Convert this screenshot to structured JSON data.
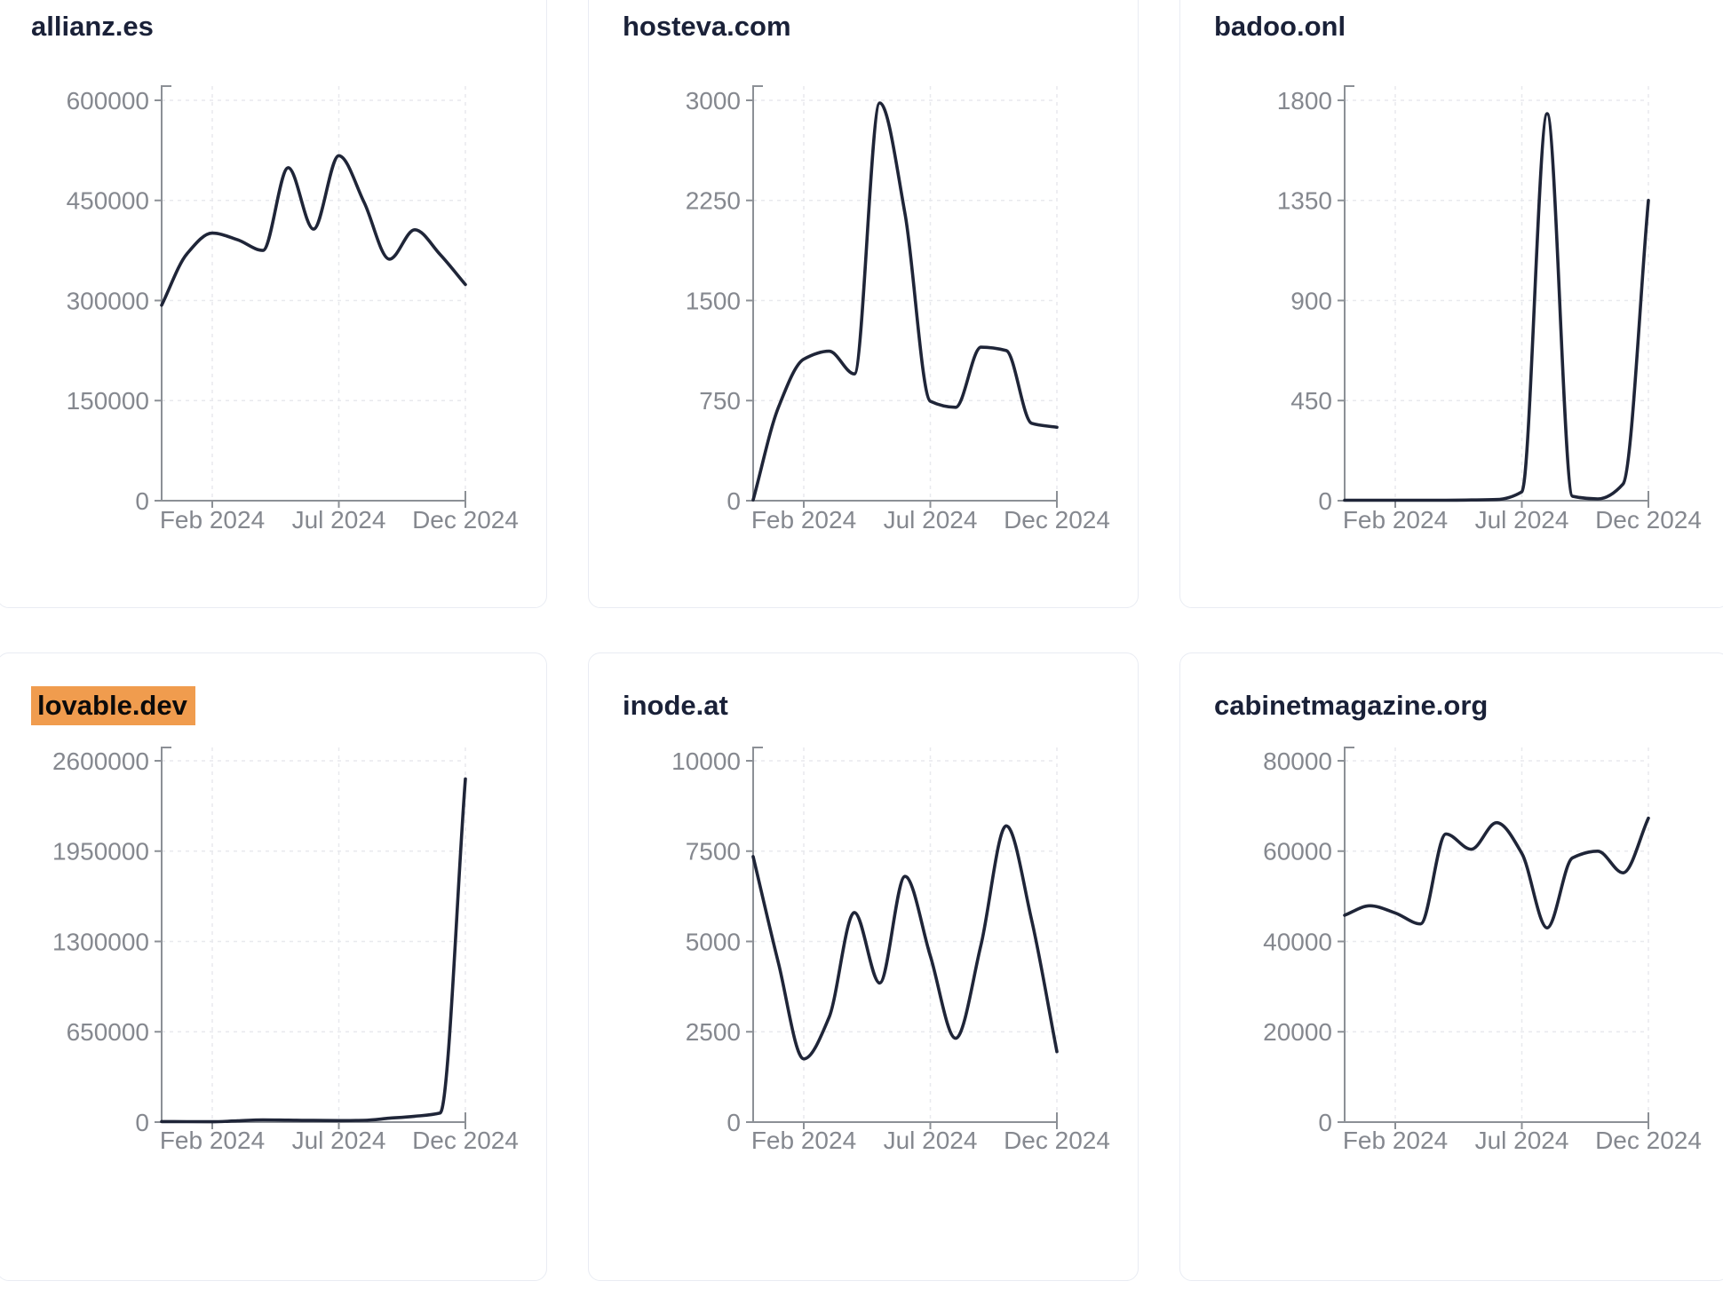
{
  "page": {
    "background": "#ffffff",
    "description_x_ticks": [
      "Feb 2024",
      "Jul 2024",
      "Dec 2024"
    ]
  },
  "style": {
    "line_color": "#1f2538",
    "title_color": "#1a2138",
    "highlight_color": "#f09c4e",
    "highlight_text_color": "#0b0b0b",
    "axis_color": "#8c9096",
    "label_color": "#85888f",
    "grid_color": "#e8e9ee",
    "card_border": "#e9ecf3",
    "card_bg": "#ffffff"
  },
  "chart_data": [
    {
      "type": "line",
      "title": "allianz.es",
      "highlighted": false,
      "x": [
        "Dec 2023",
        "Jan 2024",
        "Feb 2024",
        "Mar 2024",
        "Apr 2024",
        "May 2024",
        "Jun 2024",
        "Jul 2024",
        "Aug 2024",
        "Sep 2024",
        "Oct 2024",
        "Nov 2024",
        "Dec 2024"
      ],
      "values": [
        293000,
        370000,
        401000,
        391000,
        375000,
        499000,
        407000,
        517000,
        447000,
        362000,
        406000,
        369000,
        324000
      ],
      "ylim": [
        0,
        600000
      ],
      "y_ticks": [
        0,
        150000,
        300000,
        450000,
        600000
      ],
      "x_tick_labels": [
        "Feb 2024",
        "Jul 2024",
        "Dec 2024"
      ],
      "grid": "dashed",
      "legend": false
    },
    {
      "type": "line",
      "title": "hosteva.com",
      "highlighted": false,
      "x": [
        "Dec 2023",
        "Jan 2024",
        "Feb 2024",
        "Mar 2024",
        "Apr 2024",
        "May 2024",
        "Jun 2024",
        "Jul 2024",
        "Aug 2024",
        "Sep 2024",
        "Oct 2024",
        "Nov 2024",
        "Dec 2024"
      ],
      "values": [
        5,
        700,
        1060,
        1120,
        950,
        2980,
        2150,
        745,
        700,
        1150,
        1125,
        580,
        550
      ],
      "ylim": [
        0,
        3000
      ],
      "y_ticks": [
        0,
        750,
        1500,
        2250,
        3000
      ],
      "x_tick_labels": [
        "Feb 2024",
        "Jul 2024",
        "Dec 2024"
      ],
      "grid": "dashed",
      "legend": false
    },
    {
      "type": "line",
      "title": "badoo.onl",
      "highlighted": false,
      "x": [
        "Dec 2023",
        "Jan 2024",
        "Feb 2024",
        "Mar 2024",
        "Apr 2024",
        "May 2024",
        "Jun 2024",
        "Jul 2024",
        "Aug 2024",
        "Sep 2024",
        "Oct 2024",
        "Nov 2024",
        "Dec 2024"
      ],
      "values": [
        2,
        2,
        2,
        2,
        2,
        3,
        5,
        40,
        1740,
        20,
        8,
        75,
        1350
      ],
      "ylim": [
        0,
        1800
      ],
      "y_ticks": [
        0,
        450,
        900,
        1350,
        1800
      ],
      "x_tick_labels": [
        "Feb 2024",
        "Jul 2024",
        "Dec 2024"
      ],
      "grid": "dashed",
      "legend": false
    },
    {
      "type": "line",
      "title": "lovable.dev",
      "highlighted": true,
      "x": [
        "Dec 2023",
        "Jan 2024",
        "Feb 2024",
        "Mar 2024",
        "Apr 2024",
        "May 2024",
        "Jun 2024",
        "Jul 2024",
        "Aug 2024",
        "Sep 2024",
        "Oct 2024",
        "Nov 2024",
        "Dec 2024"
      ],
      "values": [
        4000,
        3000,
        2500,
        9000,
        16000,
        14000,
        12000,
        11000,
        13000,
        28000,
        42000,
        65000,
        2470000
      ],
      "ylim": [
        0,
        2600000
      ],
      "y_ticks": [
        0,
        650000,
        1300000,
        1950000,
        2600000
      ],
      "x_tick_labels": [
        "Feb 2024",
        "Jul 2024",
        "Dec 2024"
      ],
      "grid": "dashed",
      "legend": false
    },
    {
      "type": "line",
      "title": "inode.at",
      "highlighted": false,
      "x": [
        "Dec 2023",
        "Jan 2024",
        "Feb 2024",
        "Mar 2024",
        "Apr 2024",
        "May 2024",
        "Jun 2024",
        "Jul 2024",
        "Aug 2024",
        "Sep 2024",
        "Oct 2024",
        "Nov 2024",
        "Dec 2024"
      ],
      "values": [
        7350,
        4400,
        1750,
        2900,
        5800,
        3850,
        6800,
        4600,
        2320,
        4900,
        8200,
        5600,
        1950
      ],
      "ylim": [
        0,
        10000
      ],
      "y_ticks": [
        0,
        2500,
        5000,
        7500,
        10000
      ],
      "x_tick_labels": [
        "Feb 2024",
        "Jul 2024",
        "Dec 2024"
      ],
      "grid": "dashed",
      "legend": false
    },
    {
      "type": "line",
      "title": "cabinetmagazine.org",
      "highlighted": false,
      "x": [
        "Dec 2023",
        "Jan 2024",
        "Feb 2024",
        "Mar 2024",
        "Apr 2024",
        "May 2024",
        "Jun 2024",
        "Jul 2024",
        "Aug 2024",
        "Sep 2024",
        "Oct 2024",
        "Nov 2024",
        "Dec 2024"
      ],
      "values": [
        45800,
        47900,
        46300,
        43900,
        63800,
        60400,
        66300,
        59500,
        43000,
        58500,
        60000,
        55200,
        67300
      ],
      "ylim": [
        0,
        80000
      ],
      "y_ticks": [
        0,
        20000,
        40000,
        60000,
        80000
      ],
      "x_tick_labels": [
        "Feb 2024",
        "Jul 2024",
        "Dec 2024"
      ],
      "grid": "dashed",
      "legend": false
    }
  ]
}
